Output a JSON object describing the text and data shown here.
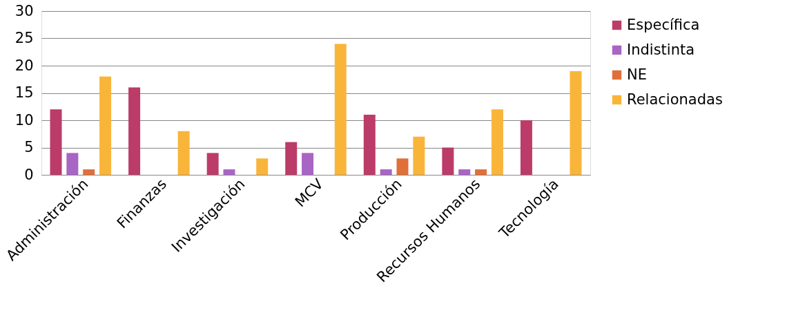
{
  "chart_data": {
    "type": "bar",
    "categories": [
      "Administración",
      "Finanzas",
      "Investigación",
      "MCV",
      "Producción",
      "Recursos Humanos",
      "Tecnología"
    ],
    "series": [
      {
        "name": "Específica",
        "color": "#bc3c69",
        "values": [
          12,
          16,
          4,
          6,
          11,
          5,
          10
        ]
      },
      {
        "name": "Indistinta",
        "color": "#a865c4",
        "values": [
          4,
          null,
          1,
          4,
          1,
          1,
          null
        ]
      },
      {
        "name": "NE",
        "color": "#e0703a",
        "values": [
          1,
          null,
          null,
          null,
          3,
          1,
          null
        ]
      },
      {
        "name": "Relacionadas",
        "color": "#f9b53a",
        "values": [
          18,
          8,
          3,
          24,
          7,
          12,
          19
        ]
      }
    ],
    "ylim": [
      0,
      30
    ],
    "yticks": [
      0,
      5,
      10,
      15,
      20,
      25,
      30
    ],
    "grid": "y",
    "legend": "right"
  }
}
